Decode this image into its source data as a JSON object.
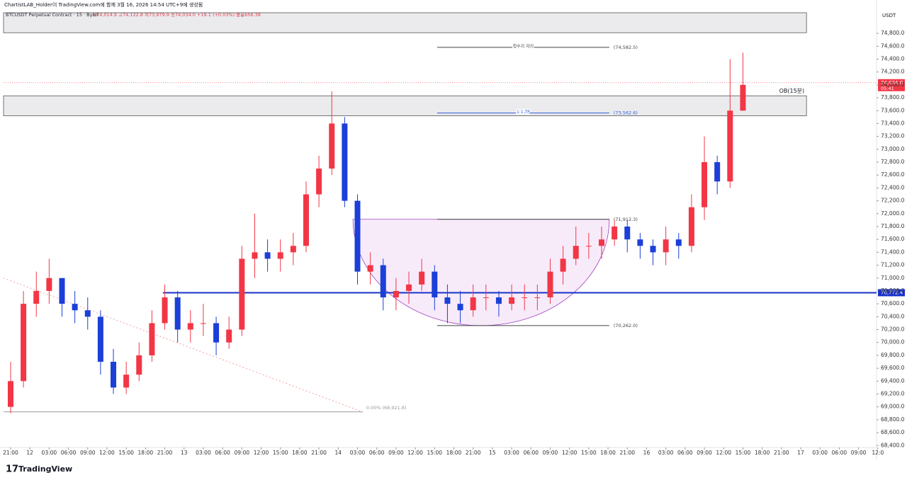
{
  "header": "ChartistLAB_Holder이 TradingView.com에 함께 3월 16, 2026 14:54 UTC+9에 생성됨",
  "chart_data": {
    "type": "candlestick",
    "symbol": "BTCUSDT Perpetual Contract · 15 · Bybit",
    "ohlc_text": "시74,014.9  고74,122.8  저73,979.9  종74,034.0  +19.1 (+0.03%)  볼륨656.38",
    "axis_unit": "USDT",
    "up_color": "#f23645",
    "down_color": "#1c3fd8",
    "x": [
      0,
      2,
      4,
      6,
      8,
      10,
      12,
      14,
      16,
      18,
      20,
      22,
      24,
      26,
      28,
      30,
      32,
      34,
      36,
      38,
      40,
      42,
      44,
      46,
      48,
      50,
      52,
      54,
      56,
      58,
      60,
      62,
      64,
      66,
      68,
      70,
      72,
      74,
      76,
      78,
      80,
      82,
      84,
      86,
      88,
      90,
      92,
      94,
      96,
      98,
      100,
      102,
      104,
      106,
      108,
      110,
      112,
      114
    ],
    "open": [
      69000,
      69400,
      70600,
      70800,
      71000,
      70600,
      70500,
      70400,
      69700,
      69300,
      69500,
      69800,
      70300,
      70700,
      70200,
      70300,
      70300,
      70000,
      70200,
      71300,
      71400,
      71300,
      71400,
      71500,
      72300,
      72700,
      73400,
      72200,
      71100,
      71200,
      70700,
      70800,
      70900,
      71100,
      70700,
      70600,
      70500,
      70700,
      70700,
      70600,
      70700,
      70700,
      70700,
      71100,
      71300,
      71500,
      71500,
      71600,
      71800,
      71600,
      71500,
      71400,
      71600,
      71500,
      72100,
      72800,
      72500,
      73600
    ],
    "high": [
      69700,
      70800,
      71100,
      71300,
      71000,
      70800,
      70700,
      70500,
      69900,
      69700,
      70000,
      70500,
      70900,
      70800,
      70500,
      70600,
      70400,
      70400,
      71500,
      72000,
      71600,
      71600,
      71700,
      72500,
      72900,
      73900,
      73500,
      72300,
      71400,
      71300,
      71000,
      71100,
      71300,
      71200,
      70900,
      70800,
      70900,
      70900,
      70800,
      70900,
      70900,
      70900,
      71300,
      71500,
      71800,
      71700,
      71800,
      71900,
      71900,
      71700,
      71600,
      71800,
      71700,
      72300,
      73200,
      72900,
      74400,
      74500
    ],
    "low": [
      68900,
      69300,
      70400,
      70600,
      70400,
      70300,
      70200,
      69500,
      69200,
      69200,
      69400,
      69700,
      70200,
      70000,
      70000,
      70100,
      69800,
      69900,
      70100,
      71000,
      71100,
      71100,
      71200,
      71400,
      72100,
      72600,
      72100,
      70900,
      70900,
      70500,
      70500,
      70600,
      70800,
      70500,
      70300,
      70300,
      70400,
      70500,
      70400,
      70500,
      70500,
      70500,
      70600,
      70900,
      71200,
      71300,
      71300,
      71500,
      71400,
      71300,
      71200,
      71200,
      71300,
      71400,
      71900,
      72300,
      72400,
      73600
    ],
    "close": [
      69400,
      70600,
      70800,
      71000,
      70600,
      70500,
      70400,
      69700,
      69300,
      69500,
      69800,
      70300,
      70700,
      70200,
      70300,
      70300,
      70000,
      70200,
      71300,
      71400,
      71300,
      71400,
      71500,
      72300,
      72700,
      73400,
      72200,
      71100,
      71200,
      70700,
      70800,
      70900,
      71100,
      70700,
      70600,
      70500,
      70700,
      70700,
      70600,
      70700,
      70700,
      70700,
      71100,
      71300,
      71500,
      71500,
      71600,
      71800,
      71600,
      71500,
      71400,
      71600,
      71500,
      72100,
      72800,
      72500,
      73600,
      74000
    ],
    "xlim": [
      -1.1,
      134.8
    ],
    "xticks": [
      {
        "value": 0,
        "label": "21:00"
      },
      {
        "value": 3,
        "label": "12"
      },
      {
        "value": 6,
        "label": "03:00"
      },
      {
        "value": 9,
        "label": "06:00"
      },
      {
        "value": 12,
        "label": "09:00"
      },
      {
        "value": 15,
        "label": "12:00"
      },
      {
        "value": 18,
        "label": "15:00"
      },
      {
        "value": 21,
        "label": "18:00"
      },
      {
        "value": 24,
        "label": "21:00"
      },
      {
        "value": 27,
        "label": "13"
      },
      {
        "value": 30,
        "label": "03:00"
      },
      {
        "value": 33,
        "label": "06:00"
      },
      {
        "value": 36,
        "label": "09:00"
      },
      {
        "value": 39,
        "label": "12:00"
      },
      {
        "value": 42,
        "label": "15:00"
      },
      {
        "value": 45,
        "label": "18:00"
      },
      {
        "value": 48,
        "label": "21:00"
      },
      {
        "value": 51,
        "label": "14"
      },
      {
        "value": 54,
        "label": "03:00"
      },
      {
        "value": 57,
        "label": "06:00"
      },
      {
        "value": 60,
        "label": "09:00"
      },
      {
        "value": 63,
        "label": "12:00"
      },
      {
        "value": 66,
        "label": "15:00"
      },
      {
        "value": 69,
        "label": "18:00"
      },
      {
        "value": 72,
        "label": "21:00"
      },
      {
        "value": 75,
        "label": "15"
      },
      {
        "value": 78,
        "label": "03:00"
      },
      {
        "value": 81,
        "label": "06:00"
      },
      {
        "value": 84,
        "label": "09:00"
      },
      {
        "value": 87,
        "label": "12:00"
      },
      {
        "value": 90,
        "label": "15:00"
      },
      {
        "value": 93,
        "label": "18:00"
      },
      {
        "value": 96,
        "label": "21:00"
      },
      {
        "value": 99,
        "label": "16"
      },
      {
        "value": 102,
        "label": "03:00"
      },
      {
        "value": 105,
        "label": "06:00"
      },
      {
        "value": 108,
        "label": "09:00"
      },
      {
        "value": 111,
        "label": "12:00"
      },
      {
        "value": 114,
        "label": "15:00"
      },
      {
        "value": 117,
        "label": "18:00"
      },
      {
        "value": 120,
        "label": "21:00"
      },
      {
        "value": 123,
        "label": "17"
      },
      {
        "value": 126,
        "label": "03:00"
      },
      {
        "value": 129,
        "label": "06:00"
      },
      {
        "value": 132,
        "label": "09:00"
      },
      {
        "value": 135,
        "label": "12:0"
      }
    ],
    "ylim": [
      68370,
      75120
    ],
    "yticks": [
      {
        "value": 74800,
        "label": "74,800.0"
      },
      {
        "value": 74600,
        "label": "74,600.0"
      },
      {
        "value": 74400,
        "label": "74,400.0"
      },
      {
        "value": 74200,
        "label": "74,200.0"
      },
      {
        "value": 74000,
        "label": "74,000.0"
      },
      {
        "value": 73800,
        "label": "73,800.0"
      },
      {
        "value": 73600,
        "label": "73,600.0"
      },
      {
        "value": 73400,
        "label": "73,400.0"
      },
      {
        "value": 73200,
        "label": "73,200.0"
      },
      {
        "value": 73000,
        "label": "73,000.0"
      },
      {
        "value": 72800,
        "label": "72,800.0"
      },
      {
        "value": 72600,
        "label": "72,600.0"
      },
      {
        "value": 72400,
        "label": "72,400.0"
      },
      {
        "value": 72200,
        "label": "72,200.0"
      },
      {
        "value": 72000,
        "label": "72,000.0"
      },
      {
        "value": 71800,
        "label": "71,800.0"
      },
      {
        "value": 71600,
        "label": "71,600.0"
      },
      {
        "value": 71400,
        "label": "71,400.0"
      },
      {
        "value": 71200,
        "label": "71,200.0"
      },
      {
        "value": 71000,
        "label": "71,000.0"
      },
      {
        "value": 70800,
        "label": "70,800.0"
      },
      {
        "value": 70600,
        "label": "70,600.0"
      },
      {
        "value": 70400,
        "label": "70,400.0"
      },
      {
        "value": 70200,
        "label": "70,200.0"
      },
      {
        "value": 70000,
        "label": "70,000.0"
      },
      {
        "value": 69800,
        "label": "69,800.0"
      },
      {
        "value": 69600,
        "label": "69,600.0"
      },
      {
        "value": 69400,
        "label": "69,400.0"
      },
      {
        "value": 69200,
        "label": "69,200.0"
      },
      {
        "value": 69000,
        "label": "69,000.0"
      },
      {
        "value": 68800,
        "label": "68,800.0"
      },
      {
        "value": 68600,
        "label": "68,600.0"
      },
      {
        "value": 68400,
        "label": "68,400.0"
      }
    ],
    "zones": [
      {
        "top": 75120,
        "bottom": 74810,
        "x0": -1.1,
        "x1": 123.9
      },
      {
        "label": "OB(15분)",
        "top": 73830,
        "bottom": 73520,
        "x0": -1.1,
        "x1": 123.9
      }
    ],
    "levels": [
      {
        "label": "청수리 자리",
        "price_label": "(74,582.5)",
        "price": 74582.5,
        "x0": 66.4,
        "x1": 93.2,
        "color": "#444444"
      },
      {
        "label": "1:1 TP",
        "price_label": "(73,562.6)",
        "price": 73562.6,
        "x0": 66.4,
        "x1": 93.2,
        "color": "#2f5bd8"
      },
      {
        "price_label": "(71,912.3)",
        "price": 71912.3,
        "x0": 66.4,
        "x1": 93.2,
        "color": "#444444"
      },
      {
        "price_label": "(70,262.0)",
        "price": 70262.0,
        "x0": 66.4,
        "x1": 93.2,
        "color": "#444444"
      }
    ],
    "cup": {
      "x0": 53.3,
      "x1": 93.2,
      "top": 71912.3,
      "bottom": 70262.0,
      "color": "#a040c0"
    },
    "support": {
      "price": {
        "value": 70772.4,
        "label": "70,772.4"
      },
      "x0": 23.7,
      "color": "#1832c8"
    },
    "fib": {
      "label": "0.00% (68,921.8)",
      "price": 68921.8,
      "x0": -1.1,
      "x1": 54.8,
      "trend_start": 71000
    },
    "last_price": {
      "price": {
        "value": 74034.0,
        "label": "74,034.0"
      },
      "countdown": "05:41",
      "color": "#f23645"
    },
    "logo": "TradingView"
  }
}
